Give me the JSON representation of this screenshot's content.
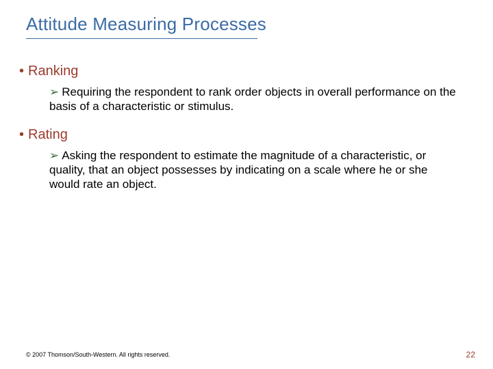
{
  "colors": {
    "title_color": "#3b6ba5",
    "bullet_color": "#9a3b2c",
    "arrow_color": "#3c6c3c",
    "underline_color": "#3b6ba5",
    "page_number_color": "#9a3b2c"
  },
  "title": {
    "text": "Attitude Measuring Processes",
    "fontsize": 26
  },
  "items": [
    {
      "label": "Ranking",
      "sub": "Requiring the respondent to rank order objects in overall performance on the basis of a characteristic or stimulus."
    },
    {
      "label": "Rating",
      "sub": "Asking the respondent to estimate the magnitude of a characteristic, or quality, that an object possesses by indicating on a scale where he or she would rate an object."
    }
  ],
  "footer": {
    "copyright": "© 2007 Thomson/South-Western. All rights reserved.",
    "page": "22"
  },
  "glyphs": {
    "bullet": "•",
    "arrow": "➢"
  }
}
